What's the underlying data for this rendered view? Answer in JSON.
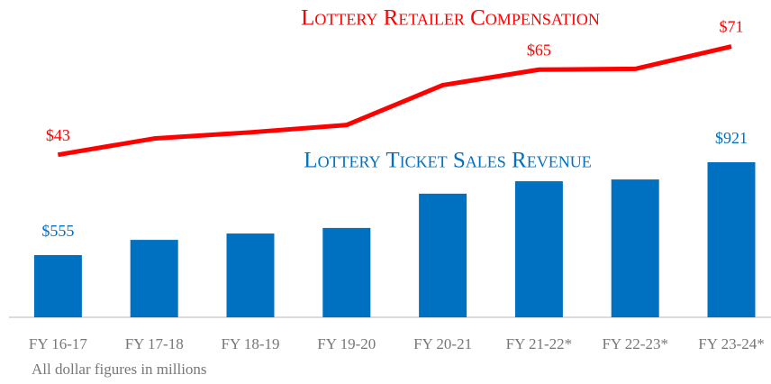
{
  "chart_data": {
    "type": "bar_line",
    "categories": [
      "FY 16-17",
      "FY 17-18",
      "FY 18-19",
      "FY 19-20",
      "FY 20-21",
      "FY 21-22*",
      "FY 22-23*",
      "FY 23-24*"
    ],
    "series": [
      {
        "name": "Lottery Ticket Sales Revenue",
        "type": "bar",
        "color": "#0070c0",
        "values": [
          555,
          615,
          640,
          662,
          797,
          846,
          853,
          921
        ],
        "value_labels": [
          "$555",
          null,
          null,
          null,
          null,
          null,
          null,
          "$921"
        ]
      },
      {
        "name": "Lottery Retailer Compensation",
        "type": "line",
        "axis": "y2",
        "color": "#ff0000",
        "values": [
          43,
          47.2,
          48.8,
          50.7,
          61,
          65,
          65.2,
          71
        ],
        "value_labels": [
          "$43",
          null,
          null,
          null,
          null,
          "$65",
          null,
          "$71"
        ]
      }
    ],
    "ylim": [
      310,
      1560
    ],
    "y2lim": [
      1,
      83
    ],
    "note": "All dollar figures in millions"
  }
}
